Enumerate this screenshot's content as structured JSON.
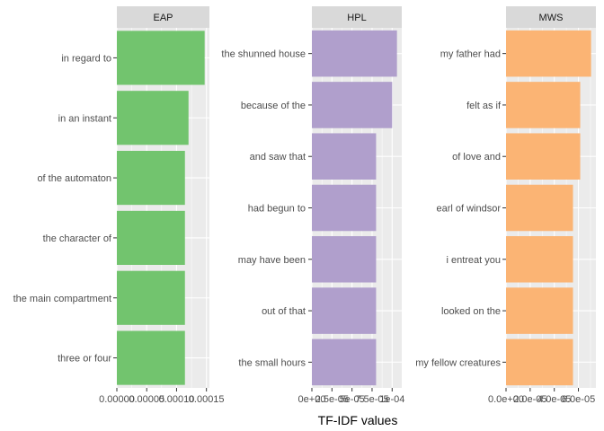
{
  "chart_data": {
    "type": "bar",
    "orientation": "horizontal",
    "xlabel": "TF-IDF values",
    "grid": true,
    "facets": [
      {
        "name": "EAP",
        "color": "#72C46E",
        "categories": [
          "in regard to",
          "in an instant",
          "of the automaton",
          "the character of",
          "the main compartment",
          "three or four"
        ],
        "values": [
          0.000147,
          0.00012,
          0.000114,
          0.000114,
          0.000114,
          0.000114
        ],
        "xlim": [
          0,
          0.000155
        ],
        "ticks": [
          0,
          5e-05,
          0.0001,
          0.00015
        ],
        "tick_labels": [
          "0.00000",
          "0.00005",
          "0.00010",
          "0.00015"
        ]
      },
      {
        "name": "HPL",
        "color": "#B09FCC",
        "categories": [
          "the shunned house",
          "because of the",
          "and saw that",
          "had begun to",
          "may have been",
          "out of that",
          "the small hours"
        ],
        "values": [
          0.000106,
          0.0001,
          8e-05,
          8e-05,
          8e-05,
          8e-05,
          8e-05
        ],
        "xlim": [
          0,
          0.000112
        ],
        "ticks": [
          0,
          2.5e-05,
          5e-05,
          7.5e-05,
          0.0001
        ],
        "tick_labels": [
          "0e+00",
          "2.5e-05",
          "5e-05",
          "7.5e-05",
          "1e-04"
        ]
      },
      {
        "name": "MWS",
        "color": "#FBB474",
        "categories": [
          "my father had",
          "felt as if",
          "of love and",
          "earl of windsor",
          "i entreat you",
          "looked on the",
          "my fellow creatures"
        ],
        "values": [
          7.05e-05,
          6.15e-05,
          6.15e-05,
          5.55e-05,
          5.55e-05,
          5.55e-05,
          5.55e-05
        ],
        "xlim": [
          0,
          7.45e-05
        ],
        "ticks": [
          0,
          2e-05,
          4e-05,
          6e-05
        ],
        "tick_labels": [
          "0.0e+00",
          "2.0e-05",
          "4.0e-05",
          "6.0e-05"
        ]
      }
    ]
  }
}
